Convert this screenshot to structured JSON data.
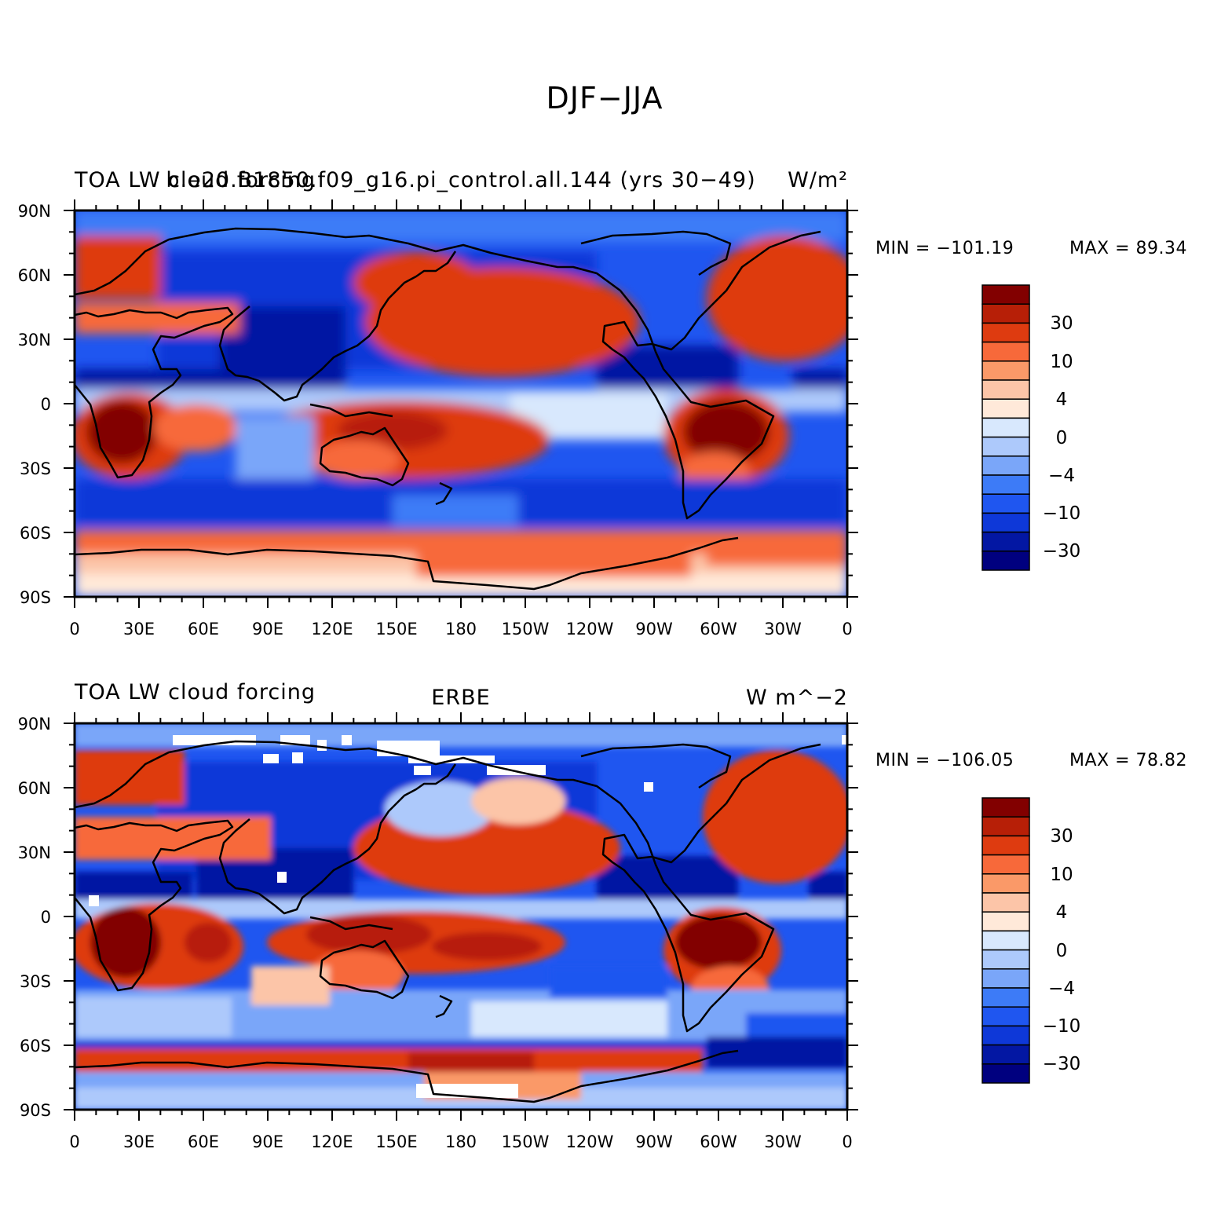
{
  "page_title": "DJF−JJA",
  "colors": {
    "scale": [
      "#00007f",
      "#0317a3",
      "#0e38d8",
      "#1f56f0",
      "#3d7bf7",
      "#7aa6f9",
      "#adc9fb",
      "#d8e8fd",
      "#ffe9d9",
      "#fcc5a8",
      "#fa9968",
      "#f7693a",
      "#de3b10",
      "#b71f07",
      "#820000"
    ]
  },
  "colorbar": {
    "labels": [
      "30",
      "10",
      "4",
      "0",
      "−4",
      "−10",
      "−30"
    ]
  },
  "axes": {
    "lat_labels": [
      "90N",
      "60N",
      "30N",
      "0",
      "30S",
      "60S",
      "90S"
    ],
    "lon_labels": [
      "0",
      "30E",
      "60E",
      "90E",
      "120E",
      "150E",
      "180",
      "150W",
      "120W",
      "90W",
      "60W",
      "30W",
      "0"
    ]
  },
  "panels": [
    {
      "left_label": "TOA LW cloud forcing",
      "center_label": "b.e20.B1850.f09_g16.pi_control.all.144 (yrs 30−49)",
      "right_label": "W/m²",
      "min_label": "MIN = −101.19",
      "max_label": "MAX =   89.34"
    },
    {
      "left_label": "TOA LW cloud forcing",
      "center_label": "ERBE",
      "right_label": "W m^−2",
      "min_label": "MIN = −106.05",
      "max_label": "MAX =   78.82"
    }
  ]
}
